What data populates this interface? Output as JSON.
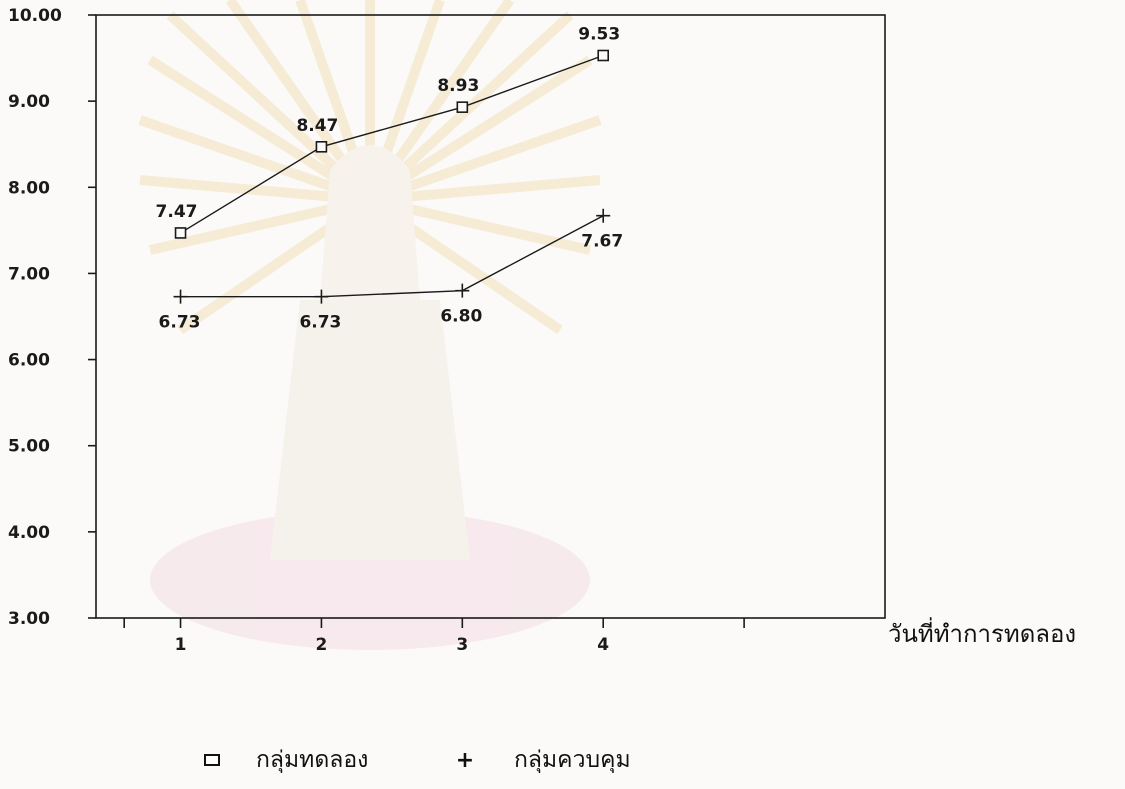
{
  "chart_data": {
    "type": "line",
    "categories": [
      "1",
      "2",
      "3",
      "4"
    ],
    "x": [
      1,
      2,
      3,
      4
    ],
    "series": [
      {
        "name": "กลุ่มทดลอง",
        "marker": "square",
        "values": [
          7.47,
          8.47,
          8.93,
          9.53
        ],
        "labels": [
          "7.47",
          "8.47",
          "8.93",
          "9.53"
        ]
      },
      {
        "name": "กลุ่มควบคุม",
        "marker": "plus",
        "values": [
          6.73,
          6.73,
          6.8,
          7.67
        ],
        "labels": [
          "6.73",
          "6.73",
          "6.80",
          "7.67"
        ]
      }
    ],
    "xlabel": "วันที่ทำการทดลอง",
    "ylabel": "",
    "title": "",
    "ylim": [
      3.0,
      10.0
    ],
    "xlim": [
      0.4,
      6.0
    ],
    "yticks": [
      "3.00",
      "4.00",
      "5.00",
      "6.00",
      "7.00",
      "8.00",
      "9.00",
      "10.00"
    ],
    "xticks": [
      "1",
      "2",
      "3",
      "4"
    ],
    "grid": false,
    "legend_position": "bottom",
    "colors": {
      "line": "#1a1a1a",
      "background": "#fbfaf9"
    }
  },
  "legend": {
    "items": [
      {
        "marker": "⊏",
        "label": "กลุ่มทดลอง"
      },
      {
        "marker": "+",
        "label": "กลุ่มควบคุม"
      }
    ]
  }
}
